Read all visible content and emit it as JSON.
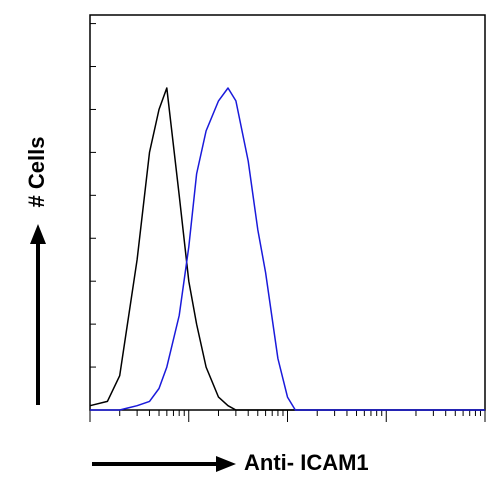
{
  "chart_data": {
    "type": "line",
    "y_label": "# Cells",
    "x_label": "Anti- ICAM1",
    "x": [
      1,
      1.5,
      2,
      3,
      4,
      5,
      6,
      8,
      10,
      12,
      15,
      20,
      25,
      30,
      40,
      50,
      60,
      80,
      100,
      120,
      150,
      200,
      300,
      1000,
      10000
    ],
    "series": [
      {
        "color": "#000000",
        "values": [
          1,
          2,
          8,
          35,
          60,
          70,
          75,
          50,
          30,
          20,
          10,
          3,
          1,
          0,
          0,
          0,
          0,
          0,
          0,
          0,
          0,
          0,
          0,
          0,
          0
        ]
      },
      {
        "color": "#1a1adb",
        "values": [
          0,
          0,
          0,
          1,
          2,
          5,
          10,
          22,
          38,
          55,
          65,
          72,
          75,
          72,
          58,
          42,
          32,
          12,
          3,
          0,
          0,
          0,
          0,
          0,
          0
        ]
      }
    ],
    "xscale": "log",
    "xlim": [
      1,
      10000
    ],
    "xticks": [
      1,
      2,
      3,
      4,
      5,
      6,
      7,
      8,
      9,
      10,
      20,
      30,
      40,
      50,
      60,
      70,
      80,
      90,
      100,
      200,
      300,
      400,
      500,
      600,
      700,
      800,
      900,
      1000,
      2000,
      3000,
      4000,
      5000,
      6000,
      7000,
      8000,
      9000,
      10000
    ],
    "ylim": [
      0,
      92
    ],
    "yticks": [
      0,
      10,
      20,
      30,
      40,
      50,
      60,
      70,
      80,
      90
    ]
  }
}
